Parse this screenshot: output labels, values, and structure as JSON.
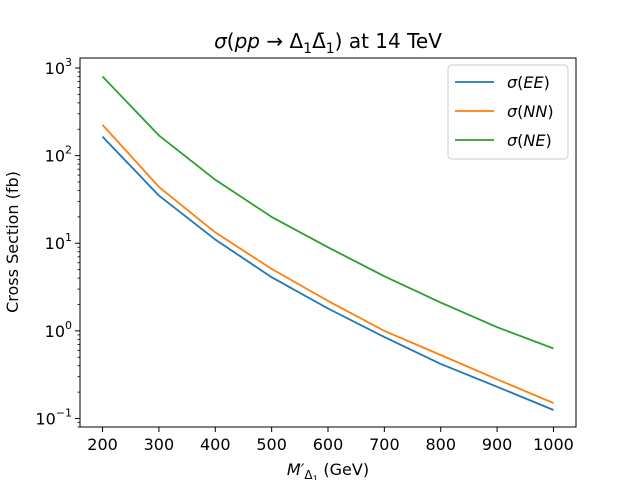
{
  "chart_data": {
    "type": "line",
    "title": "σ(pp → Δ₁Δ̄₁) at 14 TeV",
    "title_parts": {
      "sigma": "σ",
      "open": "(",
      "pp": "pp",
      "arrow": " → ",
      "delta1": "Δ",
      "sub1": "1",
      "delta1bar": "Δ̄",
      "sub2": "1",
      "close": ")",
      "rest": " at 14 TeV"
    },
    "xlabel": "M′Δ₁ (GeV)",
    "xlabel_parts": {
      "m": "M′",
      "sub": "Δ",
      "subsub": "1",
      "unit": " (GeV)"
    },
    "ylabel": "Cross Section (fb)",
    "yscale": "log",
    "xlim": [
      160,
      1040
    ],
    "ylim": [
      0.08,
      1300
    ],
    "x_ticks": [
      200,
      300,
      400,
      500,
      600,
      700,
      800,
      900,
      1000
    ],
    "x_tick_labels": [
      "200",
      "300",
      "400",
      "500",
      "600",
      "700",
      "800",
      "900",
      "1000"
    ],
    "y_ticks": [
      {
        "value": 0.1,
        "base": "10",
        "exp": "−1"
      },
      {
        "value": 1,
        "base": "10",
        "exp": "0"
      },
      {
        "value": 10,
        "base": "10",
        "exp": "1"
      },
      {
        "value": 100,
        "base": "10",
        "exp": "2"
      },
      {
        "value": 1000,
        "base": "10",
        "exp": "3"
      }
    ],
    "legend_position": "top-right",
    "grid": false,
    "x": [
      200,
      300,
      400,
      500,
      600,
      700,
      800,
      900,
      1000
    ],
    "series": [
      {
        "name": "σ(EE)",
        "label_sigma": "σ",
        "label_inner": "EE",
        "color": "#1f77b4",
        "values": [
          165,
          35,
          11,
          4.1,
          1.8,
          0.85,
          0.42,
          0.23,
          0.125
        ]
      },
      {
        "name": "σ(NN)",
        "label_sigma": "σ",
        "label_inner": "NN",
        "color": "#ff7f0e",
        "values": [
          225,
          44,
          13.3,
          5.1,
          2.2,
          1.0,
          0.53,
          0.28,
          0.15
        ]
      },
      {
        "name": "σ(NE)",
        "label_sigma": "σ",
        "label_inner": "NE",
        "color": "#2ca02c",
        "values": [
          800,
          170,
          53,
          20,
          9.0,
          4.2,
          2.1,
          1.1,
          0.63
        ]
      }
    ]
  }
}
